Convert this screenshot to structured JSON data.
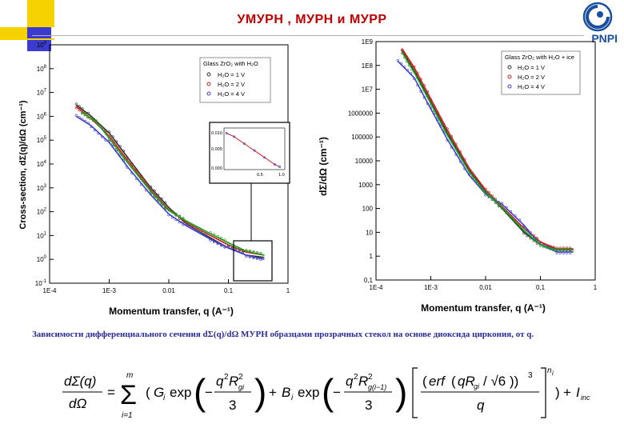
{
  "title": "УМУРН , МУРН и МУРР",
  "logo": {
    "text": "PNPI",
    "icon": "pnpi-logo-icon"
  },
  "caption": "Зависимости дифференциального сечения dΣ(q)/dΩ МУРН образцами прозрачных стекол на основе диоксида циркония, от q.",
  "colors": {
    "title": "#c00000",
    "caption": "#2a2a9a",
    "logo": "#1a4fa0",
    "deco_yellow": "#f5d200",
    "deco_blue": "#3b3bd0"
  },
  "charts": [
    {
      "ylabel": "Cross-section, dΣ(q)/dΩ (cm⁻¹)",
      "xlabel": "Momentum transfer, q (A⁻¹)",
      "xticks": [
        "1E-4",
        "1E-3",
        "0.01",
        "0.1",
        "1"
      ],
      "yticks_exp": [
        "-1",
        "0",
        "1",
        "2",
        "3",
        "4",
        "5",
        "6",
        "7",
        "8",
        "9"
      ],
      "ytick_base": "10",
      "legend_title": "Glass ZrO₂ with H₂O",
      "legend": [
        "H₂O = 1 V",
        "H₂O = 2 V",
        "H₂O = 4 V"
      ],
      "inset": {
        "yticks": [
          "0.010",
          "0.005",
          "0.000"
        ],
        "xticks": [
          "0.5",
          "1.0"
        ]
      }
    },
    {
      "ylabel": "dΣ/dΩ (cm⁻¹)",
      "xlabel": "Momentum transfer, q (A⁻¹)",
      "xticks": [
        "1E-4",
        "1E-3",
        "0,01",
        "0,1",
        "1"
      ],
      "yticks": [
        "0,1",
        "1",
        "10",
        "100",
        "1000",
        "10000",
        "100000",
        "1000000",
        "1E7",
        "1E8",
        "1E9"
      ],
      "legend_title": "Glass ZrO₂ with H₂O + ice",
      "legend": [
        "H₂O = 1 V",
        "H₂O = 2 V",
        "H₂O = 4 V"
      ]
    }
  ],
  "chart_data": [
    {
      "type": "scatter",
      "xscale": "log",
      "yscale": "log",
      "xlim": [
        0.0001,
        1
      ],
      "ylim": [
        0.1,
        1000000000
      ],
      "xlabel": "Momentum transfer, q (A⁻¹)",
      "ylabel": "Cross-section, dΣ(q)/dΩ (cm⁻¹)",
      "legend_position": "top-right",
      "series": [
        {
          "name": "H₂O = 1 V",
          "color": "#303030",
          "x": [
            0.00028,
            0.0005,
            0.001,
            0.002,
            0.005,
            0.01,
            0.02,
            0.05,
            0.1,
            0.2,
            0.4
          ],
          "y": [
            3000000,
            1000000,
            200000,
            20000,
            1000,
            150,
            30,
            8,
            3,
            1.5,
            1.2
          ]
        },
        {
          "name": "H₂O = 2 V",
          "color": "#d02020",
          "x": [
            0.00028,
            0.0005,
            0.001,
            0.002,
            0.005,
            0.01,
            0.02,
            0.05,
            0.1,
            0.2,
            0.4
          ],
          "y": [
            2500000,
            800000,
            150000,
            15000,
            800,
            120,
            35,
            10,
            4,
            2,
            1.5
          ]
        },
        {
          "name": "H₂O = 4 V",
          "color": "#4040d0",
          "x": [
            0.00028,
            0.0005,
            0.001,
            0.002,
            0.005,
            0.01,
            0.02,
            0.05,
            0.1,
            0.2,
            0.4
          ],
          "y": [
            1000000,
            400000,
            80000,
            8000,
            500,
            80,
            25,
            7,
            3,
            1.5,
            1
          ]
        },
        {
          "name": "",
          "color": "#20a020",
          "x": [
            0.00035,
            0.0006,
            0.001,
            0.002,
            0.005,
            0.01,
            0.02,
            0.05,
            0.1,
            0.2,
            0.4
          ],
          "y": [
            1500000,
            600000,
            120000,
            12000,
            700,
            110,
            40,
            12,
            5,
            2.2,
            1.5
          ]
        }
      ],
      "inset": {
        "xlim": [
          0.0,
          1.2
        ],
        "ylim": [
          0.0,
          0.012
        ],
        "x": [
          0.05,
          0.2,
          0.4,
          0.6,
          0.8,
          1.0,
          1.1
        ],
        "y": [
          0.0105,
          0.0095,
          0.0075,
          0.0055,
          0.0035,
          0.0015,
          0.0008
        ]
      }
    },
    {
      "type": "scatter",
      "xscale": "log",
      "yscale": "log",
      "xlim": [
        0.0001,
        1
      ],
      "ylim": [
        0.1,
        1000000000
      ],
      "xlabel": "Momentum transfer, q (A⁻¹)",
      "ylabel": "dΣ/dΩ (cm⁻¹)",
      "legend_position": "top-right",
      "series": [
        {
          "name": "H₂O = 1 V",
          "color": "#303030",
          "x": [
            0.0003,
            0.0005,
            0.001,
            0.002,
            0.005,
            0.01,
            0.02,
            0.05,
            0.1,
            0.2,
            0.4
          ],
          "y": [
            400000000,
            60000000,
            3000000,
            150000,
            4000,
            500,
            100,
            10,
            3,
            2,
            2
          ]
        },
        {
          "name": "H₂O = 2 V",
          "color": "#d02020",
          "x": [
            0.0003,
            0.0005,
            0.001,
            0.002,
            0.005,
            0.01,
            0.02,
            0.05,
            0.1,
            0.2,
            0.4
          ],
          "y": [
            500000000,
            80000000,
            4000000,
            200000,
            5000,
            600,
            120,
            15,
            4,
            2,
            2
          ]
        },
        {
          "name": "H₂O = 4 V",
          "color": "#4040d0",
          "x": [
            0.00025,
            0.0005,
            0.001,
            0.002,
            0.005,
            0.01,
            0.02,
            0.05,
            0.1,
            0.2,
            0.4
          ],
          "y": [
            150000000,
            30000000,
            1500000,
            80000,
            2500,
            400,
            150,
            20,
            3,
            1.5,
            1.5
          ]
        },
        {
          "name": "",
          "color": "#20a020",
          "x": [
            0.0003,
            0.0005,
            0.001,
            0.002,
            0.005,
            0.01,
            0.02,
            0.05,
            0.1,
            0.2,
            0.4
          ],
          "y": [
            350000000,
            50000000,
            2500000,
            120000,
            3500,
            450,
            110,
            12,
            3,
            1.8,
            1.8
          ]
        }
      ]
    }
  ]
}
